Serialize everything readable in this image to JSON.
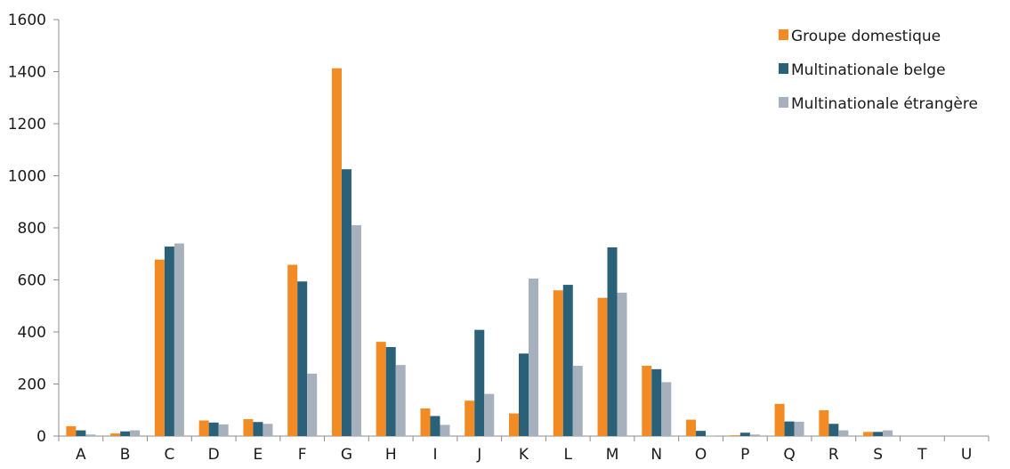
{
  "chart_data": {
    "type": "bar",
    "title": "",
    "xlabel": "",
    "ylabel": "",
    "ylim": [
      0,
      1600
    ],
    "yticks": [
      0,
      200,
      400,
      600,
      800,
      1000,
      1200,
      1400,
      1600
    ],
    "grid": false,
    "legend_position": "top-right",
    "categories": [
      "A",
      "B",
      "C",
      "D",
      "E",
      "F",
      "G",
      "H",
      "I",
      "J",
      "K",
      "L",
      "M",
      "N",
      "O",
      "P",
      "Q",
      "R",
      "S",
      "T",
      "U"
    ],
    "series": [
      {
        "name": "Groupe domestique",
        "color": "#f28b24",
        "values": [
          38,
          10,
          678,
          60,
          65,
          658,
          1413,
          362,
          106,
          136,
          87,
          560,
          531,
          270,
          63,
          3,
          124,
          99,
          16,
          0,
          0
        ]
      },
      {
        "name": "Multinationale belge",
        "color": "#2b6178",
        "values": [
          22,
          18,
          728,
          52,
          54,
          594,
          1025,
          342,
          77,
          408,
          317,
          581,
          725,
          257,
          20,
          13,
          56,
          47,
          16,
          0,
          0
        ]
      },
      {
        "name": "Multinationale étrangère",
        "color": "#a7b1be",
        "values": [
          6,
          22,
          740,
          45,
          47,
          240,
          810,
          273,
          43,
          162,
          605,
          270,
          551,
          207,
          2,
          6,
          55,
          22,
          22,
          0,
          0
        ]
      }
    ]
  }
}
